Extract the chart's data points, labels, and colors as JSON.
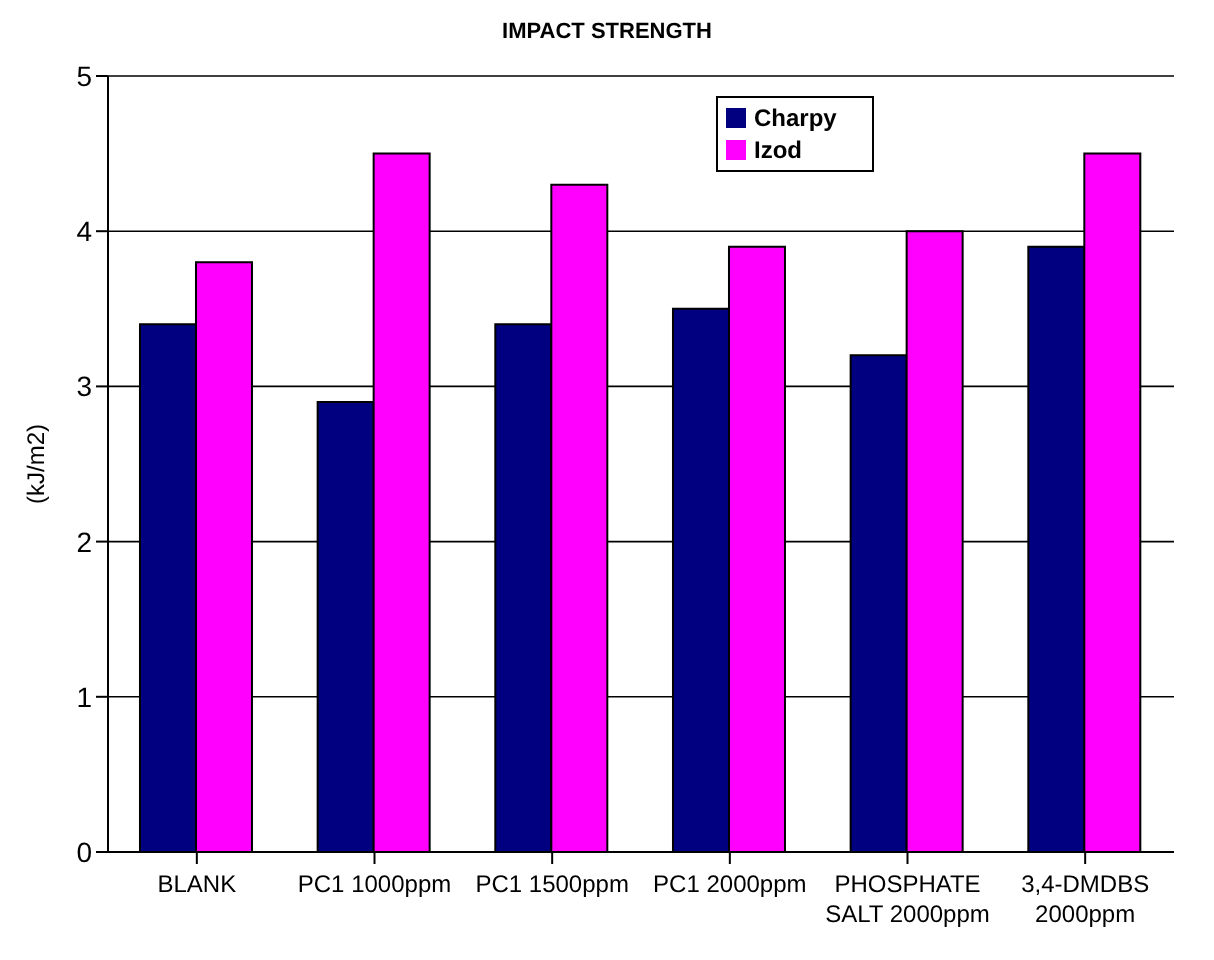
{
  "chart_data": {
    "type": "bar",
    "title": "IMPACT STRENGTH",
    "ylabel": "(kJ/m2)",
    "categories": [
      "BLANK",
      "PC1 1000ppm",
      "PC1 1500ppm",
      "PC1 2000ppm",
      "PHOSPHATE SALT 2000ppm",
      "3,4-DMDBS 2000ppm"
    ],
    "series": [
      {
        "name": "Charpy",
        "color": "#000080",
        "values": [
          3.4,
          2.9,
          3.4,
          3.5,
          3.2,
          3.9
        ]
      },
      {
        "name": "Izod",
        "color": "#ff00ff",
        "values": [
          3.8,
          4.5,
          4.3,
          3.9,
          4.0,
          4.5
        ]
      }
    ],
    "ylim": [
      0,
      5
    ],
    "yticks": [
      0,
      1,
      2,
      3,
      4,
      5
    ],
    "grid": "y",
    "legend": "top"
  }
}
